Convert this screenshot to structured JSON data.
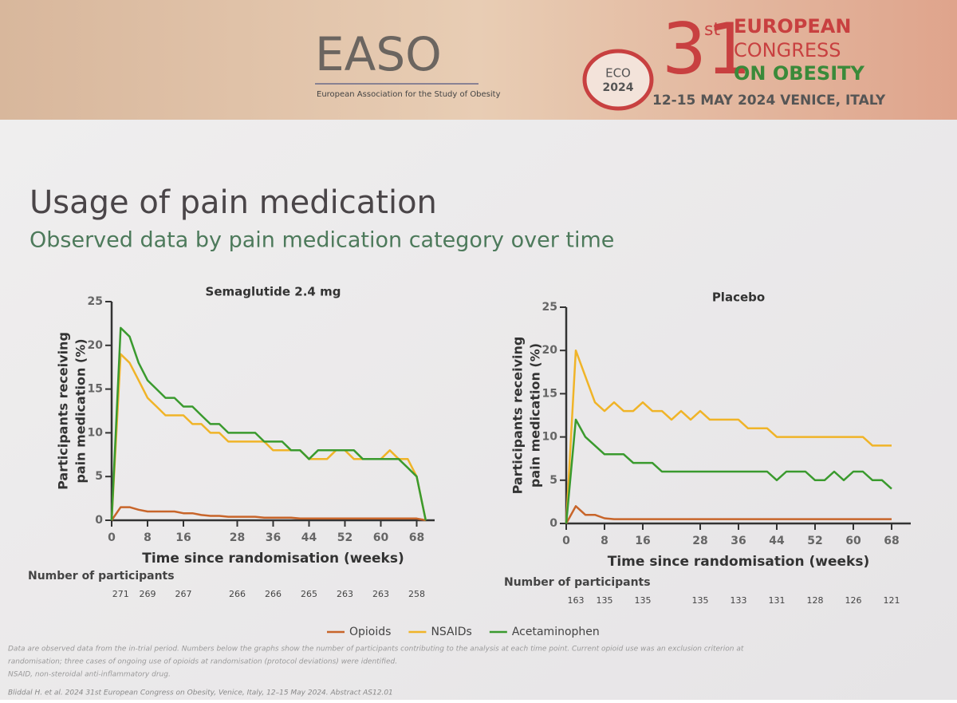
{
  "header": {
    "easo": "EASO",
    "easo_sub": "European Association for the Study of Obesity",
    "eco_badge": "ECO",
    "eco_year": "2024",
    "number": "31",
    "ordinal": "st",
    "line1": "EUROPEAN",
    "line2": "CONGRESS",
    "line3": "ON OBESITY",
    "dates": "12-15 MAY 2024 VENICE, ITALY"
  },
  "slide": {
    "title": "Usage of pain medication",
    "subtitle": "Observed data by pain medication category over time",
    "footnote_lines": [
      "Data are observed data from the in-trial period. Numbers below the graphs show the number of participants contributing to the analysis at each time point. Current opioid use was an exclusion criterion at",
      "randomisation; three cases of ongoing use of opioids at randomisation (protocol deviations) were identified.",
      "NSAID, non-steroidal anti-inflammatory drug."
    ],
    "citation": "Bliddal H. et al. 2024 31st European Congress on Obesity, Venice, Italy, 12–15 May 2024. Abstract AS12.01"
  },
  "chart_data": [
    {
      "type": "line",
      "title": "Semaglutide 2.4 mg",
      "xlabel": "Time since randomisation (weeks)",
      "ylabel": [
        "Participants receiving",
        "pain medication (%)"
      ],
      "x": [
        0,
        2,
        4,
        6,
        8,
        10,
        12,
        14,
        16,
        18,
        20,
        22,
        24,
        26,
        28,
        30,
        32,
        34,
        36,
        38,
        40,
        42,
        44,
        46,
        48,
        50,
        52,
        54,
        56,
        58,
        60,
        62,
        64,
        66,
        68,
        70
      ],
      "series": [
        {
          "name": "Opioids",
          "color": "#c8652a",
          "values": [
            0,
            1.5,
            1.5,
            1.2,
            1,
            1,
            1,
            1,
            0.8,
            0.8,
            0.6,
            0.5,
            0.5,
            0.4,
            0.4,
            0.4,
            0.4,
            0.3,
            0.3,
            0.3,
            0.3,
            0.2,
            0.2,
            0.2,
            0.2,
            0.2,
            0.2,
            0.2,
            0.2,
            0.2,
            0.2,
            0.2,
            0.2,
            0.2,
            0.2,
            0
          ]
        },
        {
          "name": "NSAIDs",
          "color": "#f0b428",
          "values": [
            0,
            19,
            18,
            16,
            14,
            13,
            12,
            12,
            12,
            11,
            11,
            10,
            10,
            9,
            9,
            9,
            9,
            9,
            8,
            8,
            8,
            8,
            7,
            7,
            7,
            8,
            8,
            7,
            7,
            7,
            7,
            8,
            7,
            7,
            5,
            0
          ]
        },
        {
          "name": "Acetaminophen",
          "color": "#3a9a2e",
          "values": [
            0,
            22,
            21,
            18,
            16,
            15,
            14,
            14,
            13,
            13,
            12,
            11,
            11,
            10,
            10,
            10,
            10,
            9,
            9,
            9,
            8,
            8,
            7,
            8,
            8,
            8,
            8,
            8,
            7,
            7,
            7,
            7,
            7,
            6,
            5,
            0
          ]
        }
      ],
      "xlim": [
        0,
        72
      ],
      "ylim": [
        0,
        25
      ],
      "xticks": [
        0,
        8,
        16,
        28,
        36,
        44,
        52,
        60,
        68
      ],
      "yticks": [
        0,
        5,
        10,
        15,
        20,
        25
      ],
      "participants_label": "Number of participants",
      "participants_x": [
        2,
        8,
        16,
        28,
        36,
        44,
        52,
        60,
        68
      ],
      "participants": [
        271,
        269,
        267,
        266,
        266,
        265,
        263,
        263,
        258
      ]
    },
    {
      "type": "line",
      "title": "Placebo",
      "xlabel": "Time since randomisation (weeks)",
      "ylabel": [
        "Participants receiving",
        "pain medication (%)"
      ],
      "x": [
        0,
        2,
        4,
        6,
        8,
        10,
        12,
        14,
        16,
        18,
        20,
        22,
        24,
        26,
        28,
        30,
        32,
        34,
        36,
        38,
        40,
        42,
        44,
        46,
        48,
        50,
        52,
        54,
        56,
        58,
        60,
        62,
        64,
        66,
        68
      ],
      "series": [
        {
          "color": "#c8652a",
          "values": [
            0,
            2,
            1,
            1,
            0.6,
            0.5,
            0.5,
            0.5,
            0.5,
            0.5,
            0.5,
            0.5,
            0.5,
            0.5,
            0.5,
            0.5,
            0.5,
            0.5,
            0.5,
            0.5,
            0.5,
            0.5,
            0.5,
            0.5,
            0.5,
            0.5,
            0.5,
            0.5,
            0.5,
            0.5,
            0.5,
            0.5,
            0.5,
            0.5,
            0.5
          ]
        },
        {
          "color": "#f0b428",
          "values": [
            0,
            20,
            17,
            14,
            13,
            14,
            13,
            13,
            14,
            13,
            13,
            12,
            13,
            12,
            13,
            12,
            12,
            12,
            12,
            11,
            11,
            11,
            10,
            10,
            10,
            10,
            10,
            10,
            10,
            10,
            10,
            10,
            9,
            9,
            9
          ]
        },
        {
          "color": "#3a9a2e",
          "values": [
            0,
            12,
            10,
            9,
            8,
            8,
            8,
            7,
            7,
            7,
            6,
            6,
            6,
            6,
            6,
            6,
            6,
            6,
            6,
            6,
            6,
            6,
            5,
            6,
            6,
            6,
            5,
            5,
            6,
            5,
            6,
            6,
            5,
            5,
            4
          ]
        }
      ],
      "xlim": [
        0,
        72
      ],
      "ylim": [
        0,
        25
      ],
      "xticks": [
        0,
        8,
        16,
        28,
        36,
        44,
        52,
        60,
        68
      ],
      "yticks": [
        0,
        5,
        10,
        15,
        20,
        25
      ],
      "participants_label": "Number of participants",
      "participants_x": [
        2,
        8,
        16,
        28,
        36,
        44,
        52,
        60,
        68
      ],
      "participants": [
        163,
        135,
        135,
        135,
        133,
        131,
        128,
        126,
        121
      ]
    }
  ]
}
